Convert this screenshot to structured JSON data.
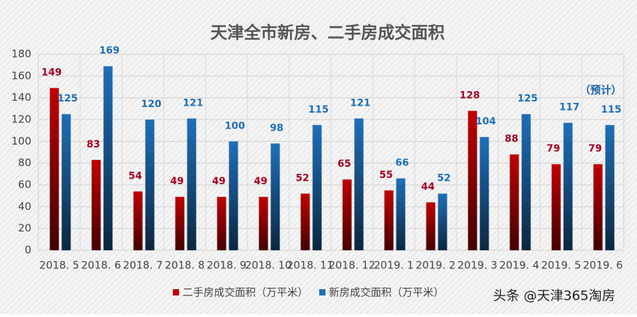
{
  "chart_data": {
    "type": "bar",
    "title": "天津全市新房、二手房成交面积",
    "categories": [
      "2018. 5",
      "2018. 6",
      "2018. 7",
      "2018. 8",
      "2018. 9",
      "2018. 10",
      "2018. 11",
      "2018. 12",
      "2019. 1",
      "2019. 2",
      "2019. 3",
      "2019. 4",
      "2019. 5",
      "2019. 6"
    ],
    "series": [
      {
        "name": "二手房成交面积（万平米）",
        "color": "#c00000",
        "label_color": "#a50021",
        "values": [
          149,
          83,
          54,
          49,
          49,
          49,
          52,
          65,
          55,
          44,
          128,
          88,
          79,
          79
        ]
      },
      {
        "name": "新房成交面积（万平米）",
        "color": "#1f6fb8",
        "label_color": "#1f6fb8",
        "values": [
          125,
          169,
          120,
          121,
          100,
          98,
          115,
          121,
          66,
          52,
          104,
          125,
          117,
          115
        ]
      }
    ],
    "ylim": [
      0,
      180
    ],
    "yticks": [
      0,
      20,
      40,
      60,
      80,
      100,
      120,
      140,
      160,
      180
    ],
    "grid": true,
    "annotation": "（预计）",
    "source": "头条 @天津365淘房"
  }
}
